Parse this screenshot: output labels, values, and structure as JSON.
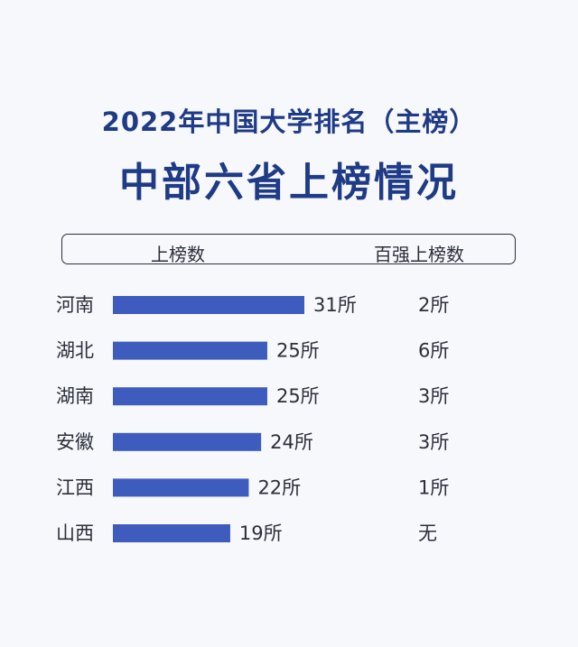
{
  "title": "2022年中国大学排名（主榜）",
  "subtitle": "中部六省上榜情况",
  "columns": {
    "left": "上榜数",
    "right": "百强上榜数"
  },
  "chart_data": {
    "type": "bar",
    "orientation": "horizontal",
    "categories": [
      "河南",
      "湖北",
      "湖南",
      "安徽",
      "江西",
      "山西"
    ],
    "values": [
      31,
      25,
      25,
      24,
      22,
      19
    ],
    "value_labels": [
      "31所",
      "25所",
      "25所",
      "24所",
      "22所",
      "19所"
    ],
    "secondary_labels": [
      "2所",
      "6所",
      "3所",
      "3所",
      "1所",
      "无"
    ],
    "bar_color": "#3e5cbe",
    "grid": false
  }
}
